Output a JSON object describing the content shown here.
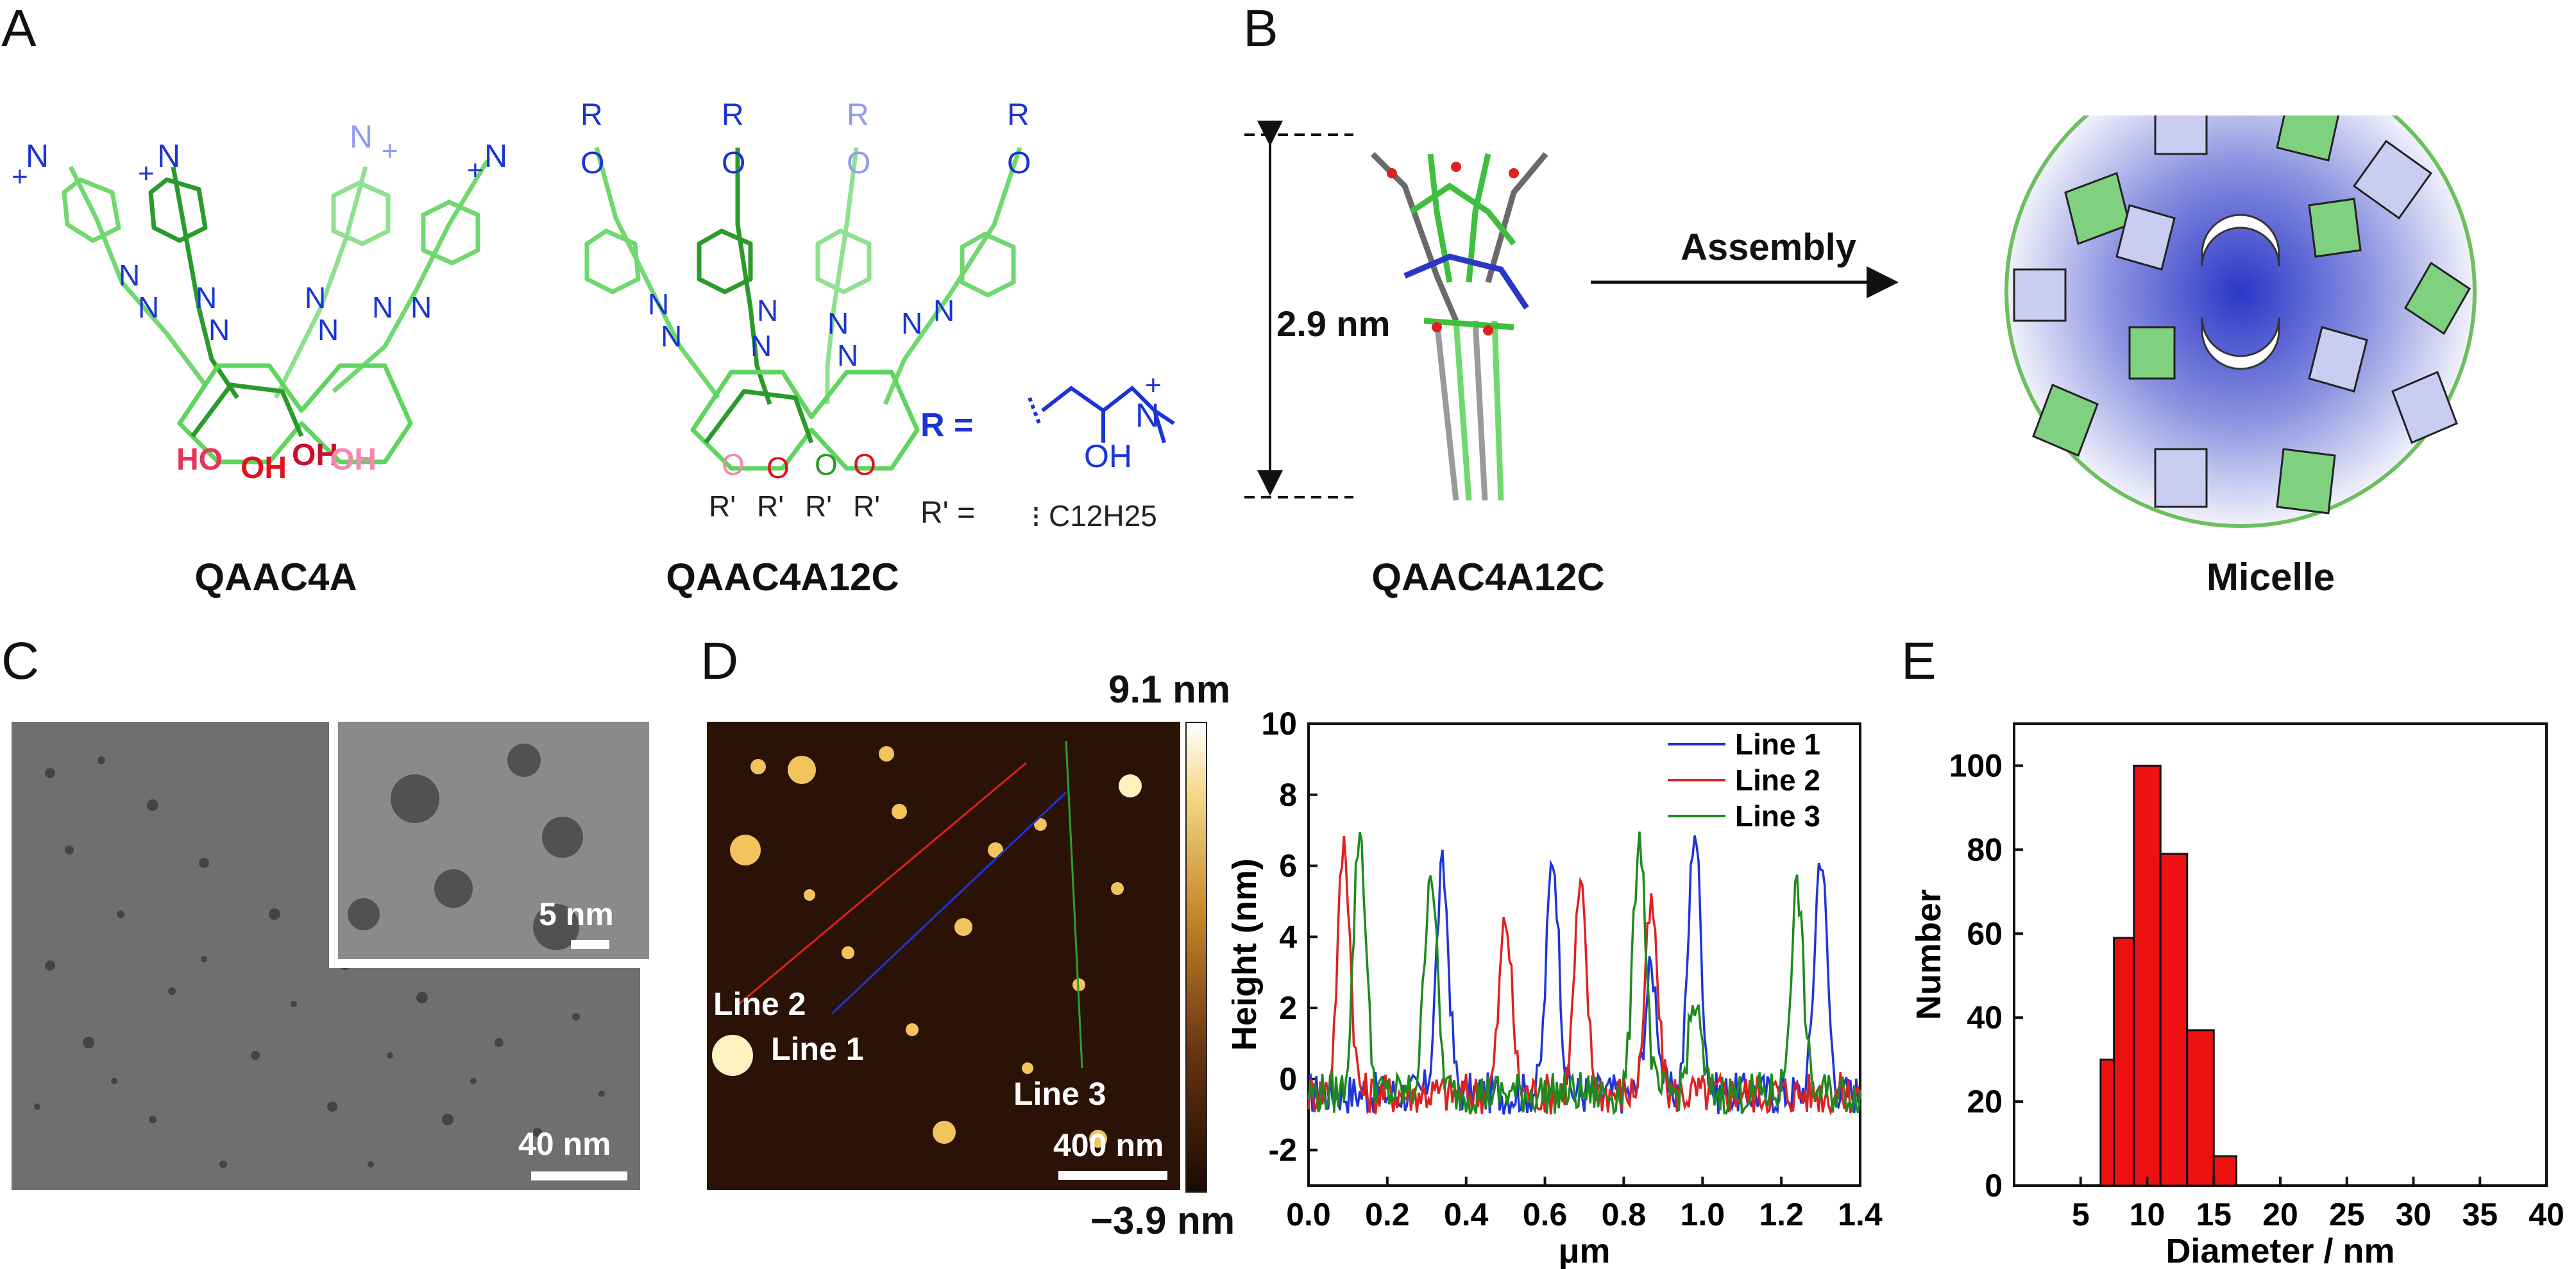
{
  "panels": {
    "a": "A",
    "b": "B",
    "c": "C",
    "d": "D",
    "e": "E"
  },
  "panelA": {
    "molecule1_name": "QAAC4A",
    "molecule2_name": "QAAC4A12C",
    "hydroxyl": "OH",
    "ho": "HO",
    "ammonium": "N",
    "plus": "+",
    "oxygen": "O",
    "r_group": "R",
    "r_prime": "R'",
    "r_def_label": "R  =",
    "r_def_oh": "OH",
    "rprime_def_label": "R' =",
    "rprime_def_value": "C12H25"
  },
  "panelB": {
    "height_label": "2.9 nm",
    "arrow_label": "Assembly",
    "left_caption": "QAAC4A12C",
    "right_caption": "Micelle"
  },
  "panelC": {
    "scale_main": "40 nm",
    "scale_inset": "5 nm"
  },
  "panelD": {
    "colorbar_max": "9.1 nm",
    "colorbar_min": "−3.9 nm",
    "scale": "400 nm",
    "line_labels": [
      "Line 1",
      "Line 2",
      "Line 3"
    ]
  },
  "chart_data": [
    {
      "type": "line",
      "xlabel": "μm",
      "ylabel": "Height (nm)",
      "xlim": [
        0.0,
        1.4
      ],
      "ylim": [
        -3,
        10
      ],
      "xticks": [
        "0.0",
        "0.2",
        "0.4",
        "0.6",
        "0.8",
        "1.0",
        "1.2",
        "1.4"
      ],
      "yticks": [
        "-2",
        "0",
        "2",
        "4",
        "6",
        "8",
        "10"
      ],
      "legend": "top-right",
      "series": [
        {
          "name": "Line 1",
          "color": "#1f35d6",
          "peaks": [
            [
              0.34,
              5.8
            ],
            [
              0.62,
              6.2
            ],
            [
              0.87,
              3.0
            ],
            [
              0.98,
              7.0
            ],
            [
              1.3,
              6.3
            ]
          ]
        },
        {
          "name": "Line 2",
          "color": "#e02020",
          "peaks": [
            [
              0.09,
              6.5
            ],
            [
              0.5,
              4.4
            ],
            [
              0.69,
              5.2
            ],
            [
              0.87,
              4.7
            ]
          ]
        },
        {
          "name": "Line 3",
          "color": "#1e8a1e",
          "peaks": [
            [
              0.13,
              6.9
            ],
            [
              0.31,
              5.9
            ],
            [
              0.84,
              6.8
            ],
            [
              0.98,
              2.0
            ],
            [
              1.24,
              5.3
            ]
          ]
        }
      ]
    },
    {
      "type": "bar",
      "xlabel": "Diameter / nm",
      "ylabel": "Number",
      "xlim": [
        0,
        40
      ],
      "ylim": [
        0,
        110
      ],
      "xticks": [
        "5",
        "10",
        "15",
        "20",
        "25",
        "30",
        "35",
        "40"
      ],
      "yticks": [
        "0",
        "20",
        "40",
        "60",
        "80",
        "100"
      ],
      "bar_color": "#ee1111",
      "bins": [
        {
          "x0": 6.5,
          "x1": 7.5,
          "value": 30
        },
        {
          "x0": 7.5,
          "x1": 9.0,
          "value": 59
        },
        {
          "x0": 9.0,
          "x1": 11.0,
          "value": 100
        },
        {
          "x0": 11.0,
          "x1": 13.0,
          "value": 79
        },
        {
          "x0": 13.0,
          "x1": 15.0,
          "value": 37
        },
        {
          "x0": 15.0,
          "x1": 16.7,
          "value": 7
        }
      ]
    }
  ]
}
